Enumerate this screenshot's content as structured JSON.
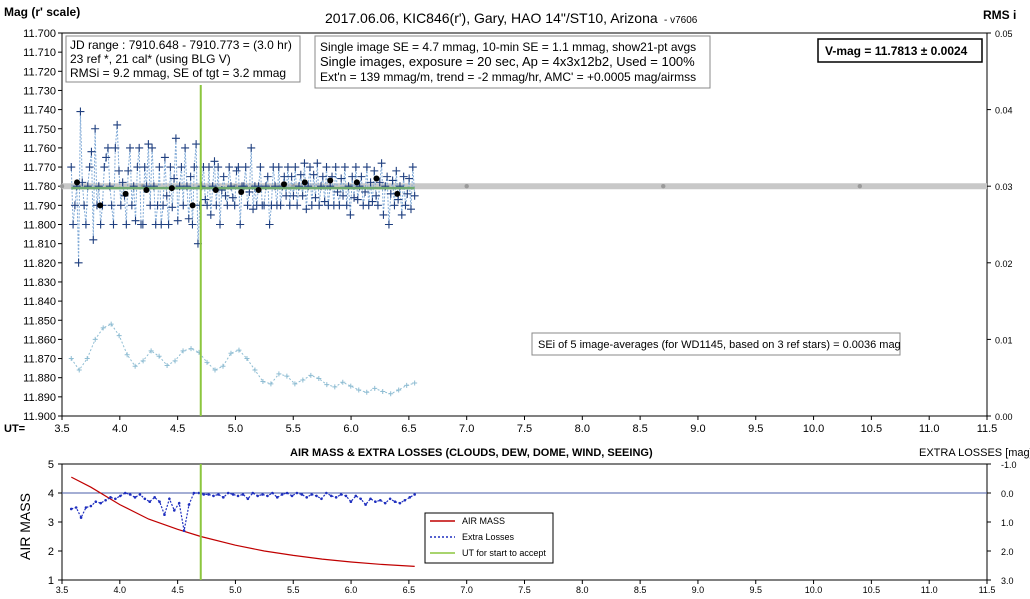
{
  "chart_data": [
    {
      "type": "scatter",
      "title": "2017.06.06,  KIC846(r'),  Gary,  HAO 14\"/ST10, Arizona",
      "version": "- v7606",
      "ylabel": "Mag (r' scale)",
      "y2label": "RMS i",
      "xlabel": "UT=",
      "xlim": [
        3.5,
        11.5
      ],
      "ylim": [
        11.7,
        11.9
      ],
      "y_inverted": true,
      "y2lim": [
        0.0,
        0.05
      ],
      "xticks": [
        "3.5",
        "4.0",
        "4.5",
        "5.0",
        "5.5",
        "6.0",
        "6.5",
        "7.0",
        "7.5",
        "8.0",
        "8.5",
        "9.0",
        "9.5",
        "10.0",
        "10.5",
        "11.0",
        "11.5"
      ],
      "yticks": [
        "11.700",
        "11.710",
        "11.720",
        "11.730",
        "11.740",
        "11.750",
        "11.760",
        "11.770",
        "11.780",
        "11.790",
        "11.800",
        "11.810",
        "11.820",
        "11.830",
        "11.840",
        "11.850",
        "11.860",
        "11.870",
        "11.880",
        "11.890",
        "11.900"
      ],
      "y2ticks": [
        "0.05",
        "0.04",
        "0.03",
        "0.02",
        "0.01",
        "0.00"
      ],
      "grid": false,
      "annotations": {
        "box1": [
          "JD range : 7910.648 - 7910.773 = (3.0 hr)",
          "23 ref *, 21 cal* (using BLG V)",
          "RMSi = 9.2 mmag, SE of tgt = 3.2 mmag"
        ],
        "box2": [
          "Single image SE = 4.7 mmag, 10-min SE = 1.1 mmag, show21-pt avgs",
          "Single images, exposure = 20 sec, Ap = 4x3x12b2, Used = 100%",
          "Ext'n = 139 mmag/m, trend = -2 mmag/hr, AMC' = +0.0005 mag/airmss"
        ],
        "vmag": "V-mag = 11.7813 ± 0.0024",
        "se_note": "SEi of 5 image-averages (for WD1145, based on 3 ref stars) = 0.0036 mag"
      },
      "vertical_line_ut": 4.7,
      "mean_mag": 11.781,
      "rms_reference": 0.03,
      "rms_reference_x": [
        3.5,
        4.2,
        5.0,
        5.5,
        6.0,
        7.0,
        8.7,
        10.4
      ],
      "series": [
        {
          "kind": "single-image mags",
          "color": "#1f3f7f",
          "x_start": 3.58,
          "x_end": 6.55,
          "values": [
            11.77,
            11.8,
            11.79,
            11.78,
            11.82,
            11.741,
            11.778,
            11.79,
            11.8,
            11.78,
            11.77,
            11.762,
            11.808,
            11.75,
            11.79,
            11.78,
            11.8,
            11.79,
            11.77,
            11.765,
            11.76,
            11.78,
            11.79,
            11.8,
            11.76,
            11.748,
            11.772,
            11.79,
            11.778,
            11.785,
            11.8,
            11.772,
            11.76,
            11.79,
            11.78,
            11.798,
            11.77,
            11.76,
            11.8,
            11.8,
            11.77,
            11.78,
            11.758,
            11.79,
            11.76,
            11.78,
            11.8,
            11.79,
            11.77,
            11.8,
            11.79,
            11.765,
            11.785,
            11.8,
            11.77,
            11.791,
            11.776,
            11.755,
            11.798,
            11.78,
            11.77,
            11.79,
            11.76,
            11.78,
            11.797,
            11.775,
            11.8,
            11.77,
            11.758,
            11.81,
            11.79,
            11.78,
            11.77,
            11.787,
            11.79,
            11.77,
            11.795,
            11.78,
            11.767,
            11.79,
            11.77,
            11.8,
            11.782,
            11.775,
            11.785,
            11.79,
            11.77,
            11.78,
            11.786,
            11.79,
            11.772,
            11.77,
            11.8,
            11.78,
            11.78,
            11.77,
            11.79,
            11.783,
            11.76,
            11.792,
            11.78,
            11.79,
            11.78,
            11.77,
            11.79,
            11.79,
            11.78,
            11.775,
            11.8,
            11.79,
            11.77,
            11.78,
            11.79,
            11.77,
            11.79,
            11.78,
            11.775,
            11.785,
            11.77,
            11.79,
            11.775,
            11.785,
            11.77,
            11.79,
            11.78,
            11.774,
            11.785,
            11.768,
            11.792,
            11.78,
            11.77,
            11.79,
            11.774,
            11.786,
            11.768,
            11.79,
            11.78,
            11.775,
            11.788,
            11.77,
            11.79,
            11.78,
            11.775,
            11.79,
            11.77,
            11.783,
            11.79,
            11.776,
            11.785,
            11.77,
            11.79,
            11.78,
            11.795,
            11.775,
            11.786,
            11.77,
            11.787,
            11.78,
            11.775,
            11.79,
            11.783,
            11.77,
            11.79,
            11.778,
            11.788,
            11.772,
            11.785,
            11.79,
            11.778,
            11.768,
            11.795,
            11.78,
            11.775,
            11.8,
            11.784,
            11.777,
            11.79,
            11.772,
            11.787,
            11.78,
            11.795,
            11.775,
            11.79,
            11.784,
            11.776,
            11.792,
            11.77,
            11.785
          ]
        },
        {
          "kind": "21-pt averages",
          "color": "#000000",
          "x": [
            3.63,
            3.83,
            4.05,
            4.23,
            4.45,
            4.63,
            4.83,
            5.05,
            5.2,
            5.42,
            5.6,
            5.82,
            6.05,
            6.22,
            6.4
          ],
          "values": [
            11.778,
            11.79,
            11.784,
            11.782,
            11.781,
            11.79,
            11.782,
            11.783,
            11.782,
            11.779,
            11.778,
            11.777,
            11.778,
            11.776,
            11.784
          ]
        },
        {
          "kind": "RMS i (right axis)",
          "color": "#8fbdd3",
          "x_start": 3.58,
          "x_end": 6.55,
          "values": [
            0.0075,
            0.006,
            0.0075,
            0.01,
            0.0115,
            0.012,
            0.0105,
            0.008,
            0.0065,
            0.0072,
            0.0085,
            0.0078,
            0.0066,
            0.0072,
            0.0085,
            0.0088,
            0.0083,
            0.007,
            0.006,
            0.0065,
            0.0082,
            0.0086,
            0.0075,
            0.006,
            0.0045,
            0.0042,
            0.0055,
            0.0052,
            0.0042,
            0.0047,
            0.0053,
            0.0049,
            0.0041,
            0.0038,
            0.0044,
            0.0039,
            0.0034,
            0.0031,
            0.0036,
            0.0032,
            0.0029,
            0.0034,
            0.004,
            0.0043
          ]
        }
      ]
    },
    {
      "type": "line",
      "title": "AIR MASS & EXTRA LOSSES (CLOUDS, DEW, DOME, WIND, SEEING)",
      "ylabel": "AIR MASS",
      "y2label": "EXTRA LOSSES [mag]",
      "xlim": [
        3.5,
        11.5
      ],
      "ylim": [
        1,
        5
      ],
      "y2lim": [
        -1.0,
        3.0
      ],
      "y2_inverted": true,
      "xticks": [
        "3.5",
        "4.0",
        "4.5",
        "5.0",
        "5.5",
        "6.0",
        "6.5",
        "7.0",
        "7.5",
        "8.0",
        "8.5",
        "9.0",
        "9.5",
        "10.0",
        "10.5",
        "11.0",
        "11.5"
      ],
      "yticks": [
        "5",
        "4",
        "3",
        "2",
        "1"
      ],
      "y2ticks": [
        "-1.0",
        "0.0",
        "1.0",
        "2.0",
        "3.0"
      ],
      "legend": [
        "AIR MASS",
        "Extra Losses",
        "UT for start to accept"
      ],
      "legend_position": "center",
      "vertical_line_ut": 4.7,
      "series": [
        {
          "name": "AIR MASS",
          "color": "#c00000",
          "x": [
            3.58,
            3.75,
            4.0,
            4.25,
            4.5,
            4.7,
            5.0,
            5.25,
            5.5,
            5.75,
            6.0,
            6.25,
            6.55
          ],
          "values": [
            4.55,
            4.2,
            3.6,
            3.1,
            2.75,
            2.5,
            2.2,
            2.0,
            1.85,
            1.72,
            1.62,
            1.54,
            1.47
          ]
        },
        {
          "name": "Extra Losses",
          "color": "#1f2fbf",
          "x_start": 3.58,
          "x_end": 6.55,
          "values": [
            0.55,
            0.5,
            0.85,
            0.5,
            0.45,
            0.3,
            0.35,
            0.25,
            0.15,
            0.2,
            0.1,
            0.0,
            0.05,
            0.15,
            0.05,
            0.2,
            0.3,
            0.15,
            0.3,
            0.75,
            0.2,
            0.6,
            0.35,
            1.3,
            0.4,
            0.0,
            0.0,
            0.05,
            0.05,
            0.1,
            0.05,
            0.15,
            0.0,
            0.05,
            0.1,
            0.05,
            0.2,
            0.0,
            0.1,
            0.05,
            0.1,
            0.0,
            0.15,
            0.05,
            0.0,
            0.1,
            0.0,
            0.05,
            0.15,
            0.05,
            0.1,
            0.2,
            0.0,
            0.1,
            0.15,
            0.05,
            0.1,
            0.3,
            0.1,
            0.2,
            0.4,
            0.2,
            0.3,
            0.25,
            0.35,
            0.2,
            0.3,
            0.35,
            0.25,
            0.15,
            0.05
          ]
        },
        {
          "name": "UT for start to accept",
          "color": "#8cc63e",
          "x": [
            4.7
          ]
        }
      ],
      "baseline_extra_losses": 0.0
    }
  ]
}
